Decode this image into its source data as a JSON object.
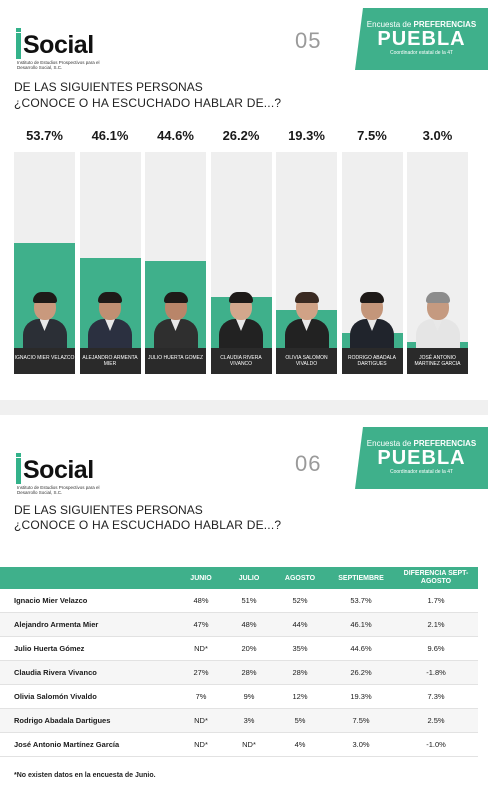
{
  "slide1": {
    "logo": "Social",
    "logo_sub": "Instituto de Estudios Prospectivos para el Desarrollo Social, S.C.",
    "number": "05",
    "badge": {
      "line1_pre": "Encuesta de ",
      "line1_bold": "PREFERENCIAS",
      "line2": "PUEBLA",
      "line3": "Coordinador estatal de la 4T"
    },
    "question_line1": "DE LAS SIGUIENTES PERSONAS",
    "question_line2": "¿CONOCE O HA ESCUCHADO HABLAR DE...?"
  },
  "slide2": {
    "logo": "Social",
    "logo_sub": "Instituto de Estudios Prospectivos para el Desarrollo Social, S.C.",
    "number": "06",
    "badge": {
      "line1_pre": "Encuesta de ",
      "line1_bold": "PREFERENCIAS",
      "line2": "PUEBLA",
      "line3": "Coordinador estatal de la 4T"
    },
    "question_line1": "DE LAS SIGUIENTES PERSONAS",
    "question_line2": "¿CONOCE O HA ESCUCHADO HABLAR DE...?",
    "table": {
      "headers": [
        "",
        "JUNIO",
        "JULIO",
        "AGOSTO",
        "SEPTIEMBRE",
        "DIFERENCIA SEPT-AGOSTO"
      ],
      "rows": [
        [
          "Ignacio Mier Velazco",
          "48%",
          "51%",
          "52%",
          "53.7%",
          "1.7%"
        ],
        [
          "Alejandro Armenta Mier",
          "47%",
          "48%",
          "44%",
          "46.1%",
          "2.1%"
        ],
        [
          "Julio Huerta Gómez",
          "ND*",
          "20%",
          "35%",
          "44.6%",
          "9.6%"
        ],
        [
          "Claudia Rivera Vivanco",
          "27%",
          "28%",
          "28%",
          "26.2%",
          "-1.8%"
        ],
        [
          "Olivia Salomón Vivaldo",
          "7%",
          "9%",
          "12%",
          "19.3%",
          "7.3%"
        ],
        [
          "Rodrigo Abadala Dartigues",
          "ND*",
          "3%",
          "5%",
          "7.5%",
          "2.5%"
        ],
        [
          "José Antonio Martínez García",
          "ND*",
          "ND*",
          "4%",
          "3.0%",
          "-1.0%"
        ]
      ]
    },
    "footnote": "*No existen datos en la encuesta de Junio."
  },
  "chart_data": {
    "type": "bar",
    "categories": [
      "IGNACIO MIER VELAZCO",
      "ALEJANDRO ARMENTA MIER",
      "JULIO HUERTA GOMEZ",
      "CLAUDIA RIVERA VIVANCO",
      "OLIVIA SALOMON VIVALDO",
      "RODRIGO ABADALA DARTIGUES",
      "JOSÉ ANTONIO MARTINEZ GARCIA"
    ],
    "values": [
      53.7,
      46.1,
      44.6,
      26.2,
      19.3,
      7.5,
      3.0
    ],
    "labels": [
      "53.7%",
      "46.1%",
      "44.6%",
      "26.2%",
      "19.3%",
      "7.5%",
      "3.0%"
    ],
    "ylim": [
      0,
      100
    ],
    "bar_color": "#3fb08b",
    "track_color": "#efefef"
  },
  "colors": {
    "accent": "#3fb08b",
    "dark": "#2a2a2a"
  }
}
